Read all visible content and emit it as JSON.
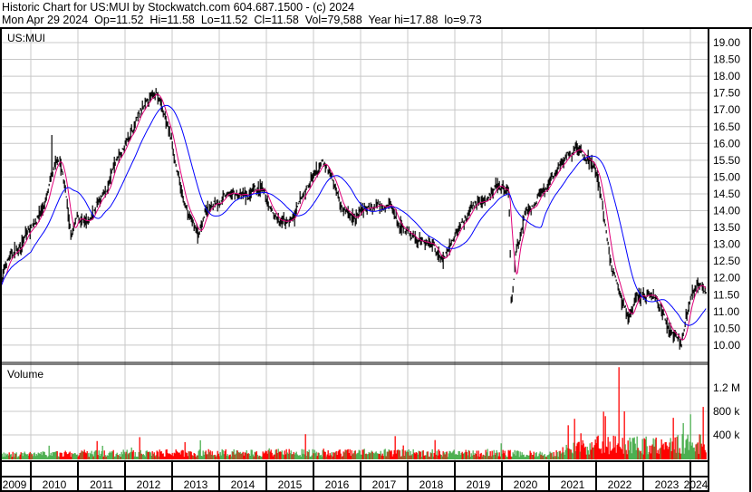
{
  "header": {
    "title": "Historic Chart for US:MUI by Stockwatch.com 604.687.1500 - (c) 2024",
    "stats": "Mon Apr 29 2024  Op=11.52  Hi=11.58  Lo=11.52  Cl=11.58  Vol=79,588  Year hi=17.88  lo=9.73"
  },
  "chart_data": [
    {
      "type": "line",
      "title": "US:MUI",
      "series_style": "OHLC bars with moving averages",
      "colors": {
        "bars": "#000000",
        "short_ma": "#e0007a",
        "long_ma": "#0000ff",
        "grid": "#c8c8c8"
      },
      "y_ticks": [
        "19.00",
        "18.50",
        "18.00",
        "17.50",
        "17.00",
        "16.50",
        "16.00",
        "15.50",
        "15.00",
        "14.50",
        "14.00",
        "13.50",
        "13.00",
        "12.50",
        "12.00",
        "11.50",
        "11.00",
        "10.50",
        "10.00"
      ],
      "ylim": [
        9.6,
        19.4
      ],
      "grid": true,
      "price_path": [
        [
          2009.35,
          11.8
        ],
        [
          2009.5,
          12.5
        ],
        [
          2009.8,
          13.0
        ],
        [
          2010.0,
          13.5
        ],
        [
          2010.3,
          14.2
        ],
        [
          2010.5,
          15.2
        ],
        [
          2010.6,
          15.6
        ],
        [
          2010.75,
          14.5
        ],
        [
          2010.85,
          13.2
        ],
        [
          2011.0,
          13.8
        ],
        [
          2011.2,
          13.5
        ],
        [
          2011.4,
          14.2
        ],
        [
          2011.6,
          14.5
        ],
        [
          2011.8,
          15.5
        ],
        [
          2012.0,
          16.0
        ],
        [
          2012.3,
          16.8
        ],
        [
          2012.5,
          17.2
        ],
        [
          2012.65,
          17.6
        ],
        [
          2012.8,
          17.0
        ],
        [
          2013.0,
          16.0
        ],
        [
          2013.2,
          14.5
        ],
        [
          2013.35,
          13.8
        ],
        [
          2013.55,
          13.3
        ],
        [
          2013.7,
          14.0
        ],
        [
          2014.0,
          14.3
        ],
        [
          2014.3,
          14.5
        ],
        [
          2014.6,
          14.4
        ],
        [
          2014.9,
          14.6
        ],
        [
          2015.1,
          14.0
        ],
        [
          2015.3,
          13.6
        ],
        [
          2015.6,
          13.8
        ],
        [
          2015.8,
          14.5
        ],
        [
          2016.0,
          15.0
        ],
        [
          2016.2,
          15.4
        ],
        [
          2016.4,
          15.0
        ],
        [
          2016.6,
          14.2
        ],
        [
          2016.8,
          13.8
        ],
        [
          2017.1,
          14.0
        ],
        [
          2017.4,
          14.2
        ],
        [
          2017.6,
          14.3
        ],
        [
          2017.8,
          13.6
        ],
        [
          2018.0,
          13.3
        ],
        [
          2018.2,
          13.1
        ],
        [
          2018.5,
          13.1
        ],
        [
          2018.7,
          12.6
        ],
        [
          2018.85,
          12.8
        ],
        [
          2019.0,
          13.2
        ],
        [
          2019.2,
          13.8
        ],
        [
          2019.5,
          14.3
        ],
        [
          2019.7,
          14.4
        ],
        [
          2019.95,
          14.7
        ],
        [
          2020.15,
          14.5
        ],
        [
          2020.2,
          11.0
        ],
        [
          2020.3,
          12.8
        ],
        [
          2020.5,
          13.8
        ],
        [
          2020.7,
          14.2
        ],
        [
          2021.0,
          14.8
        ],
        [
          2021.3,
          15.5
        ],
        [
          2021.6,
          15.9
        ],
        [
          2021.8,
          15.6
        ],
        [
          2021.95,
          15.4
        ],
        [
          2022.1,
          14.5
        ],
        [
          2022.3,
          12.5
        ],
        [
          2022.5,
          11.7
        ],
        [
          2022.7,
          10.8
        ],
        [
          2022.85,
          11.5
        ],
        [
          2023.0,
          11.5
        ],
        [
          2023.2,
          11.4
        ],
        [
          2023.4,
          11.0
        ],
        [
          2023.55,
          10.5
        ],
        [
          2023.8,
          10.0
        ],
        [
          2023.9,
          10.6
        ],
        [
          2024.0,
          11.5
        ],
        [
          2024.2,
          11.8
        ],
        [
          2024.33,
          11.58
        ]
      ]
    },
    {
      "type": "bar",
      "title": "Volume",
      "colors": {
        "up": "#4caf50",
        "down": "#ff0000"
      },
      "y_ticks": [
        "400 k",
        "800 k",
        "1.2 M"
      ],
      "ylim": [
        0,
        1600000
      ],
      "typical_volume": [
        [
          2009,
          60000
        ],
        [
          2012,
          90000
        ],
        [
          2016,
          100000
        ],
        [
          2020,
          90000
        ],
        [
          2021,
          70000
        ],
        [
          2022,
          250000
        ],
        [
          2023,
          220000
        ],
        [
          2024,
          250000
        ]
      ],
      "spikes": [
        [
          2022.48,
          1550000
        ],
        [
          2022.6,
          800000
        ],
        [
          2024.0,
          750000
        ],
        [
          2023.85,
          600000
        ]
      ]
    }
  ],
  "x_axis": {
    "labels": [
      "2009",
      "2010",
      "2011",
      "2012",
      "2013",
      "2014",
      "2015",
      "2016",
      "2017",
      "2018",
      "2019",
      "2020",
      "2021",
      "2022",
      "2023",
      "2024"
    ]
  }
}
